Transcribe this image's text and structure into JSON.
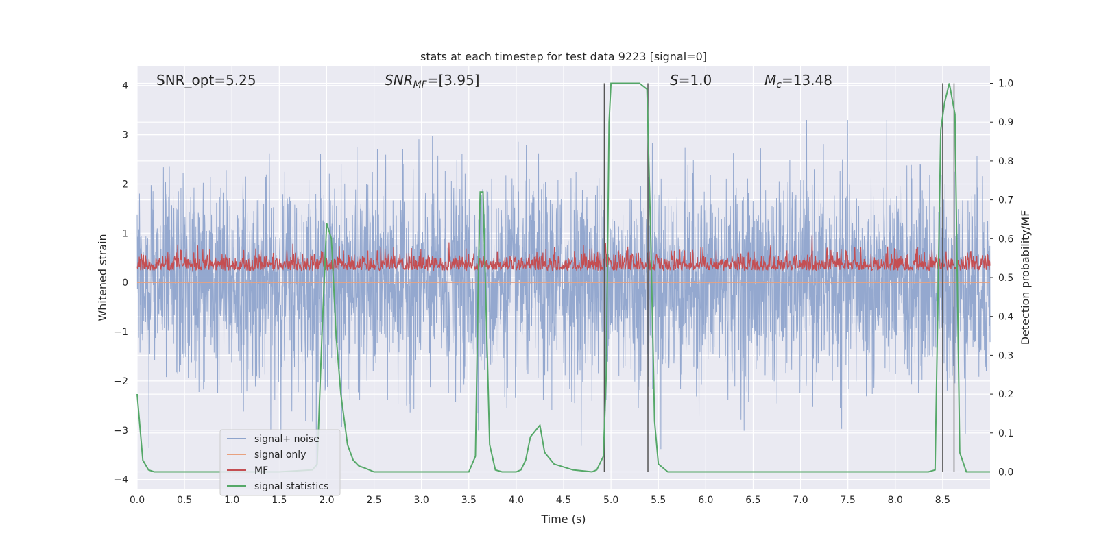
{
  "chart_data": {
    "type": "line",
    "title": "stats at each timestep for test data 9223 [signal=0]",
    "xlabel": "Time (s)",
    "ylabel_left": "Whitened strain",
    "ylabel_right": "Detection probability/MF",
    "xlim": [
      0.0,
      9.0
    ],
    "ylim_left": [
      -4.2,
      4.4
    ],
    "ylim_right": [
      -0.045,
      1.045
    ],
    "x_ticks": [
      "0.0",
      "0.5",
      "1.0",
      "1.5",
      "2.0",
      "2.5",
      "3.0",
      "3.5",
      "4.0",
      "4.5",
      "5.0",
      "5.5",
      "6.0",
      "6.5",
      "7.0",
      "7.5",
      "8.0",
      "8.5"
    ],
    "y_ticks_left": [
      "4",
      "3",
      "2",
      "1",
      "0",
      "−1",
      "−2",
      "−3",
      "−4"
    ],
    "y_ticks_right": [
      "1.0",
      "0.9",
      "0.8",
      "0.7",
      "0.6",
      "0.5",
      "0.4",
      "0.3",
      "0.2",
      "0.1",
      "0.0"
    ],
    "grid": true,
    "legend_position": "lower-left",
    "annotations": {
      "snr_opt": "SNR_opt=5.25",
      "snr_mf_main": "SNR",
      "snr_mf_sub": "MF",
      "snr_mf_value": "=[3.95]",
      "s_main": "S",
      "s_value": "=1.0",
      "mc_main": "M",
      "mc_sub": "c",
      "mc_value": "=13.48"
    },
    "series": [
      {
        "name": "signal+ noise",
        "color": "#8fa4cc",
        "description": "whitened strain, noise with std ~1 over 0-9 s"
      },
      {
        "name": "signal only",
        "color": "#e8a17f",
        "values_constant": 0.0
      },
      {
        "name": "MF",
        "color": "#c44e52",
        "axis": "right",
        "mean": 0.53,
        "range": [
          0.49,
          0.61
        ]
      },
      {
        "name": "signal statistics",
        "color": "#55a868",
        "axis": "right",
        "x": [
          0.0,
          0.06,
          0.12,
          0.18,
          0.5,
          1.0,
          1.5,
          1.85,
          1.9,
          1.95,
          2.0,
          2.05,
          2.1,
          2.15,
          2.22,
          2.28,
          2.34,
          2.4,
          2.5,
          2.7,
          3.0,
          3.3,
          3.5,
          3.57,
          3.6,
          3.62,
          3.65,
          3.72,
          3.78,
          3.85,
          4.0,
          4.05,
          4.1,
          4.15,
          4.25,
          4.3,
          4.4,
          4.6,
          4.8,
          4.85,
          4.92,
          4.95,
          4.98,
          5.0,
          5.1,
          5.3,
          5.38,
          5.42,
          5.46,
          5.5,
          5.6,
          6.0,
          7.0,
          8.0,
          8.35,
          8.42,
          8.48,
          8.52,
          8.57,
          8.63,
          8.68,
          8.75,
          9.0
        ],
        "y": [
          0.2,
          0.03,
          0.005,
          0.0,
          0.0,
          0.0,
          0.0,
          0.005,
          0.02,
          0.35,
          0.64,
          0.6,
          0.35,
          0.2,
          0.07,
          0.03,
          0.015,
          0.01,
          0.0,
          0.0,
          0.0,
          0.0,
          0.0,
          0.04,
          0.5,
          0.72,
          0.72,
          0.07,
          0.005,
          0.0,
          0.0,
          0.005,
          0.03,
          0.09,
          0.12,
          0.05,
          0.02,
          0.005,
          0.0,
          0.005,
          0.04,
          0.25,
          0.9,
          1.0,
          1.0,
          1.0,
          0.985,
          0.6,
          0.13,
          0.02,
          0.0,
          0.0,
          0.0,
          0.0,
          0.0,
          0.005,
          0.88,
          0.95,
          1.0,
          0.92,
          0.05,
          0.0,
          0.0
        ]
      }
    ],
    "vertical_lines_x": [
      4.93,
      5.39,
      8.5,
      8.62
    ],
    "vertical_line_color": "#555555"
  }
}
